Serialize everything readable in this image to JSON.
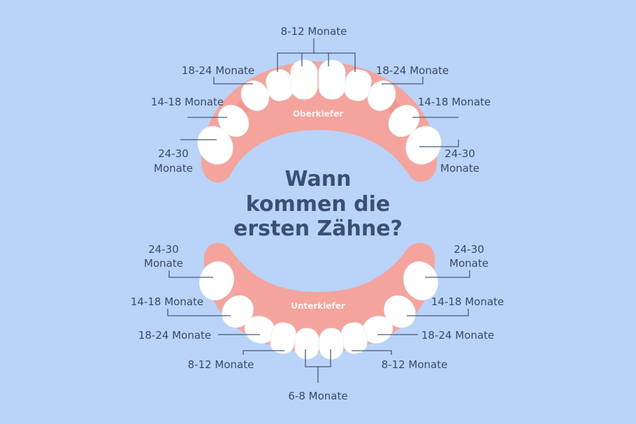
{
  "title": {
    "line1": "Wann",
    "line2": "kommen die",
    "line3": "ersten Zähne?"
  },
  "upper_jaw": {
    "name": "Oberkiefer",
    "labels": {
      "central_incisors": "8-12 Monate",
      "lateral_left": "18-24 Monate",
      "lateral_right": "18-24 Monate",
      "molar1_left": "14-18 Monate",
      "molar1_right": "14-18 Monate",
      "molar2_left_1": "24-30",
      "molar2_left_2": "Monate",
      "molar2_right_1": "24-30",
      "molar2_right_2": "Monate"
    }
  },
  "lower_jaw": {
    "name": "Unterkiefer",
    "labels": {
      "molar2_left_1": "24-30",
      "molar2_left_2": "Monate",
      "molar2_right_1": "24-30",
      "molar2_right_2": "Monate",
      "molar1_left": "14-18 Monate",
      "molar1_right": "14-18 Monate",
      "canine_left": "18-24 Monate",
      "canine_right": "18-24 Monate",
      "lateral_left": "8-12 Monate",
      "lateral_right": "8-12 Monate",
      "central_incisors": "6-8 Monate"
    }
  },
  "colors": {
    "background": "#b9d3f9",
    "gum": "#f4a49c",
    "gum_dark": "#ec8f87",
    "tooth": "#ffffff",
    "text": "#3b4f72"
  }
}
